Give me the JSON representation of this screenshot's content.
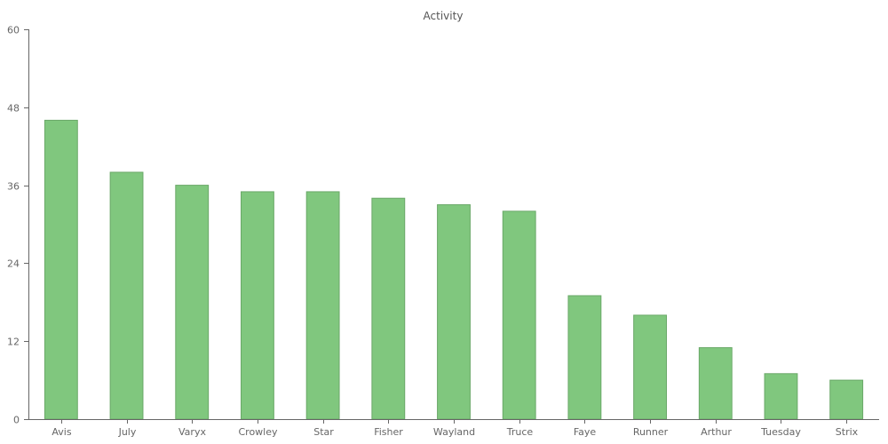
{
  "chart_data": {
    "type": "bar",
    "title": "Activity",
    "xlabel": "",
    "ylabel": "",
    "categories": [
      "Avis",
      "July",
      "Varyx",
      "Crowley",
      "Star",
      "Fisher",
      "Wayland",
      "Truce",
      "Faye",
      "Runner",
      "Arthur",
      "Tuesday",
      "Strix"
    ],
    "values": [
      46,
      38,
      36,
      35,
      35,
      34,
      33,
      32,
      19,
      16,
      11,
      7,
      6
    ],
    "ylim": [
      0,
      60
    ],
    "yticks": [
      0,
      12,
      24,
      36,
      48,
      60
    ],
    "grid": false,
    "legend": "none",
    "colors": {
      "bar_fill": "#80c77e",
      "bar_stroke": "#6aa868",
      "axis": "#666666",
      "text": "#666666"
    }
  }
}
